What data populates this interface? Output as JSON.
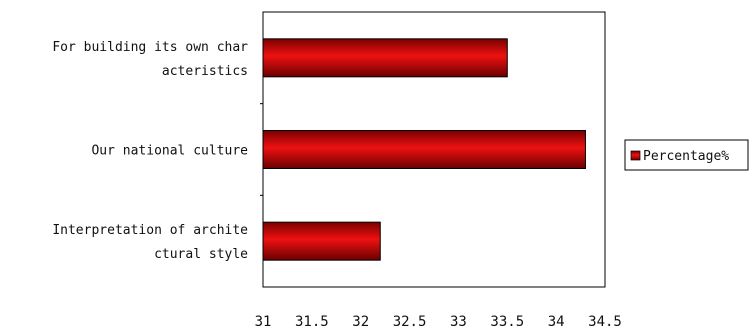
{
  "chart_data": {
    "type": "bar",
    "orientation": "horizontal",
    "categories": [
      [
        "For building its own char",
        "acteristics"
      ],
      [
        "Our national culture"
      ],
      [
        "Interpretation of archite",
        "ctural style"
      ]
    ],
    "series": [
      {
        "name": "Percentage%",
        "values": [
          33.5,
          34.3,
          32.2
        ],
        "color": "#cc0000"
      }
    ],
    "xlim": [
      31,
      34.5
    ],
    "xticks": [
      "31",
      "31.5",
      "32",
      "32.5",
      "33",
      "33.5",
      "34",
      "34.5"
    ],
    "grid": false,
    "legend_position": "right"
  }
}
